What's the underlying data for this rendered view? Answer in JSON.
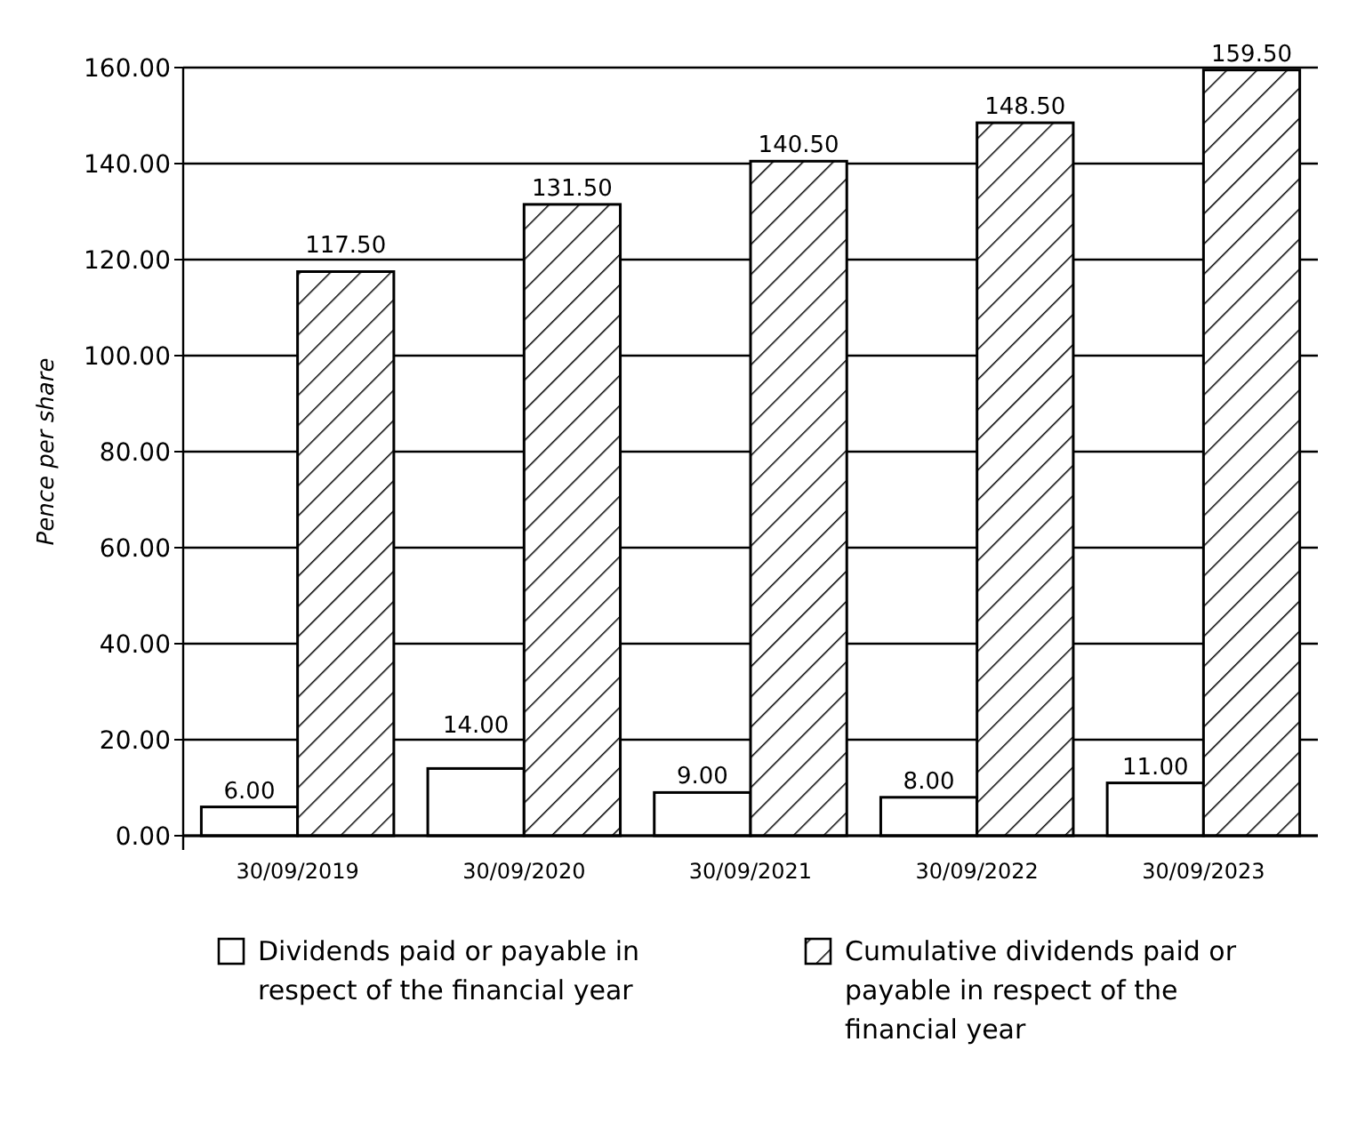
{
  "chart_data": {
    "type": "bar",
    "ylabel": "Pence per share",
    "categories": [
      "30/09/2019",
      "30/09/2020",
      "30/09/2021",
      "30/09/2022",
      "30/09/2023"
    ],
    "series": [
      {
        "name": "Dividends paid or payable in respect of the financial year",
        "color": "#ffffff",
        "values": [
          6,
          14,
          9,
          8,
          11
        ],
        "value_labels": [
          "6.00",
          "14.00",
          "9.00",
          "8.00",
          "11.00"
        ]
      },
      {
        "name": "Cumulative dividends paid or payable in respect of the financial year",
        "color": "#000000",
        "values": [
          117.5,
          131.5,
          140.5,
          148.5,
          159.5
        ],
        "value_labels": [
          "117.50",
          "131.50",
          "140.50",
          "148.50",
          "159.50"
        ]
      }
    ],
    "ylim": [
      0,
      160
    ],
    "yticks": [
      {
        "value": 0,
        "label": "0.00"
      },
      {
        "value": 20,
        "label": "20.00"
      },
      {
        "value": 40,
        "label": "40.00"
      },
      {
        "value": 60,
        "label": "60.00"
      },
      {
        "value": 80,
        "label": "80.00"
      },
      {
        "value": 100,
        "label": "100.00"
      },
      {
        "value": 120,
        "label": "120.00"
      },
      {
        "value": 140,
        "label": "140.00"
      },
      {
        "value": 160,
        "label": "160.00"
      }
    ],
    "grid": "y",
    "legend": "bottom"
  }
}
